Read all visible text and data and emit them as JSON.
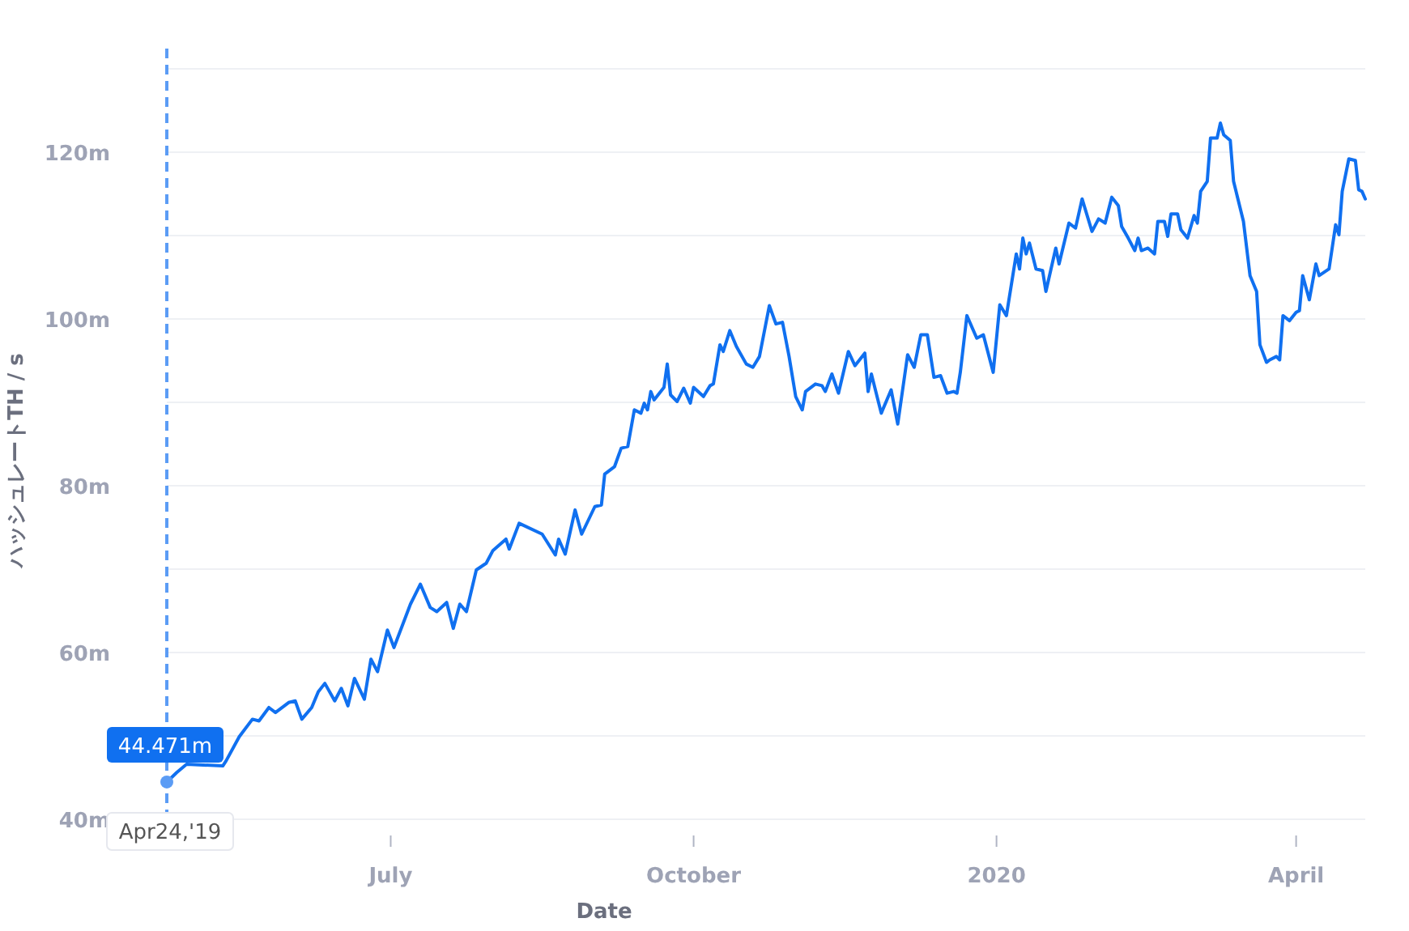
{
  "chart_data": {
    "type": "line",
    "xlabel": "Date",
    "ylabel": "ハッシュレートTH / s",
    "xlim": [
      "2019-04-24",
      "2020-04-22"
    ],
    "xticks": [
      {
        "value": "2019-07-01",
        "label": "July"
      },
      {
        "value": "2019-10-01",
        "label": "October"
      },
      {
        "value": "2020-01-01",
        "label": "2020"
      },
      {
        "value": "2020-04-01",
        "label": "April"
      }
    ],
    "ylim": [
      40,
      130
    ],
    "yticks": [
      {
        "value": 40,
        "label": "40m"
      },
      {
        "value": 50,
        "label": null
      },
      {
        "value": 60,
        "label": "60m"
      },
      {
        "value": 70,
        "label": null
      },
      {
        "value": 80,
        "label": "80m"
      },
      {
        "value": 90,
        "label": null
      },
      {
        "value": 100,
        "label": "100m"
      },
      {
        "value": 110,
        "label": null
      },
      {
        "value": 120,
        "label": "120m"
      },
      {
        "value": 130,
        "label": null
      }
    ],
    "grid": "y",
    "marker": "none",
    "line_style": "solid",
    "ref_lines": [
      {
        "axis": "x",
        "value": "2019-04-24",
        "label": "Apr24,'19",
        "color": "#5b9cf5",
        "line_style": "dashed"
      }
    ],
    "annotations": [
      {
        "text": "44.471m",
        "x": "2019-04-24",
        "y": 44.471
      }
    ],
    "x": [
      "2019-04-24",
      "2019-04-27",
      "2019-04-30",
      "2019-05-11",
      "2019-05-12",
      "2019-05-16",
      "2019-05-20",
      "2019-05-22",
      "2019-05-25",
      "2019-05-27",
      "2019-05-31",
      "2019-06-02",
      "2019-06-04",
      "2019-06-07",
      "2019-06-09",
      "2019-06-11",
      "2019-06-14",
      "2019-06-16",
      "2019-06-18",
      "2019-06-20",
      "2019-06-23",
      "2019-06-25",
      "2019-06-27",
      "2019-06-30",
      "2019-07-02",
      "2019-07-07",
      "2019-07-10",
      "2019-07-13",
      "2019-07-15",
      "2019-07-18",
      "2019-07-20",
      "2019-07-22",
      "2019-07-24",
      "2019-07-27",
      "2019-07-30",
      "2019-08-01",
      "2019-08-05",
      "2019-08-06",
      "2019-08-09",
      "2019-08-16",
      "2019-08-20",
      "2019-08-21",
      "2019-08-23",
      "2019-08-26",
      "2019-08-28",
      "2019-09-01",
      "2019-09-03",
      "2019-09-04",
      "2019-09-07",
      "2019-09-09",
      "2019-09-11",
      "2019-09-13",
      "2019-09-15",
      "2019-09-16",
      "2019-09-17",
      "2019-09-18",
      "2019-09-19",
      "2019-09-22",
      "2019-09-23",
      "2019-09-24",
      "2019-09-26",
      "2019-09-28",
      "2019-09-30",
      "2019-10-01",
      "2019-10-04",
      "2019-10-06",
      "2019-10-07",
      "2019-10-09",
      "2019-10-10",
      "2019-10-12",
      "2019-10-14",
      "2019-10-17",
      "2019-10-19",
      "2019-10-21",
      "2019-10-24",
      "2019-10-26",
      "2019-10-28",
      "2019-10-30",
      "2019-11-01",
      "2019-11-03",
      "2019-11-04",
      "2019-11-07",
      "2019-11-09",
      "2019-11-10",
      "2019-11-12",
      "2019-11-14",
      "2019-11-17",
      "2019-11-19",
      "2019-11-22",
      "2019-11-23",
      "2019-11-24",
      "2019-11-27",
      "2019-11-30",
      "2019-12-02",
      "2019-12-05",
      "2019-12-07",
      "2019-12-09",
      "2019-12-11",
      "2019-12-13",
      "2019-12-15",
      "2019-12-17",
      "2019-12-19",
      "2019-12-20",
      "2019-12-21",
      "2019-12-23",
      "2019-12-26",
      "2019-12-28",
      "2019-12-31",
      "2020-01-02",
      "2020-01-04",
      "2020-01-07",
      "2020-01-08",
      "2020-01-09",
      "2020-01-10",
      "2020-01-11",
      "2020-01-13",
      "2020-01-15",
      "2020-01-16",
      "2020-01-19",
      "2020-01-20",
      "2020-01-23",
      "2020-01-25",
      "2020-01-27",
      "2020-01-30",
      "2020-02-01",
      "2020-02-03",
      "2020-02-05",
      "2020-02-07",
      "2020-02-08",
      "2020-02-10",
      "2020-02-12",
      "2020-02-13",
      "2020-02-14",
      "2020-02-16",
      "2020-02-18",
      "2020-02-19",
      "2020-02-21",
      "2020-02-22",
      "2020-02-23",
      "2020-02-25",
      "2020-02-26",
      "2020-02-28",
      "2020-03-01",
      "2020-03-02",
      "2020-03-03",
      "2020-03-05",
      "2020-03-06",
      "2020-03-08",
      "2020-03-09",
      "2020-03-10",
      "2020-03-12",
      "2020-03-13",
      "2020-03-16",
      "2020-03-18",
      "2020-03-20",
      "2020-03-21",
      "2020-03-23",
      "2020-03-24",
      "2020-03-26",
      "2020-03-27",
      "2020-03-28",
      "2020-03-30",
      "2020-04-01",
      "2020-04-02",
      "2020-04-03",
      "2020-04-05",
      "2020-04-07",
      "2020-04-08",
      "2020-04-11",
      "2020-04-13",
      "2020-04-14",
      "2020-04-15",
      "2020-04-17",
      "2020-04-19",
      "2020-04-20",
      "2020-04-21",
      "2020-04-22"
    ],
    "series": [
      {
        "color": "#1070f0",
        "values": [
          44.471,
          45.6,
          46.6,
          46.4,
          47.0,
          49.9,
          52.0,
          51.8,
          53.4,
          52.8,
          54.0,
          54.2,
          52.0,
          53.4,
          55.3,
          56.3,
          54.2,
          55.7,
          53.6,
          56.9,
          54.4,
          59.2,
          57.7,
          62.7,
          60.6,
          65.8,
          68.2,
          65.4,
          64.9,
          66.0,
          62.9,
          65.8,
          64.9,
          69.9,
          70.7,
          72.2,
          73.6,
          72.4,
          75.5,
          74.2,
          71.7,
          73.6,
          71.8,
          77.1,
          74.2,
          77.5,
          77.7,
          81.4,
          82.3,
          84.5,
          84.7,
          89.1,
          88.7,
          89.9,
          89.1,
          91.3,
          90.3,
          91.8,
          94.6,
          90.9,
          90.1,
          91.7,
          89.9,
          91.8,
          90.7,
          92.0,
          92.2,
          96.9,
          96.1,
          98.6,
          96.7,
          94.6,
          94.2,
          95.5,
          101.6,
          99.4,
          99.6,
          95.5,
          90.7,
          89.1,
          91.3,
          92.2,
          92.0,
          91.3,
          93.4,
          91.1,
          96.1,
          94.4,
          95.9,
          91.3,
          93.4,
          88.7,
          91.5,
          87.4,
          95.7,
          94.2,
          98.1,
          98.1,
          93.0,
          93.2,
          91.1,
          91.3,
          91.1,
          93.6,
          100.4,
          97.7,
          98.1,
          93.6,
          101.7,
          100.4,
          107.8,
          106.0,
          109.7,
          107.8,
          109.1,
          106.0,
          105.8,
          103.3,
          108.5,
          106.6,
          111.5,
          110.9,
          114.4,
          110.5,
          112.0,
          111.5,
          114.6,
          113.6,
          111.1,
          109.7,
          108.2,
          109.7,
          108.2,
          108.5,
          107.8,
          111.7,
          111.7,
          109.9,
          112.6,
          112.6,
          110.7,
          109.7,
          112.4,
          111.5,
          115.3,
          116.5,
          121.7,
          121.7,
          123.5,
          122.1,
          121.4,
          116.5,
          111.7,
          105.2,
          103.3,
          96.9,
          94.8,
          95.1,
          95.5,
          95.1,
          100.4,
          99.8,
          100.8,
          101.0,
          105.2,
          102.3,
          106.6,
          105.2,
          106.0,
          111.3,
          110.1,
          115.3,
          119.2,
          119.0,
          115.5,
          115.3,
          114.4
        ]
      }
    ]
  }
}
